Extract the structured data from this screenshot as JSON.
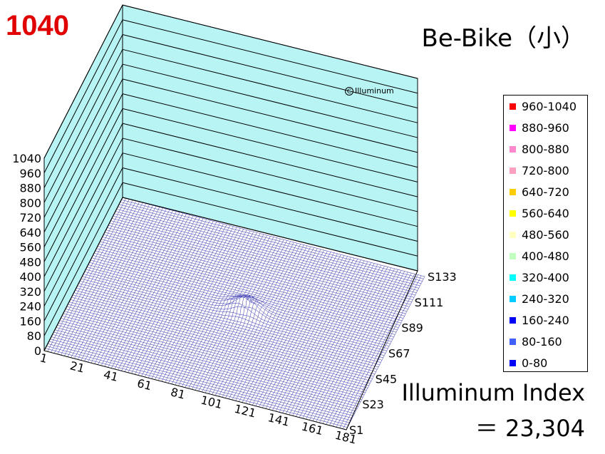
{
  "header": {
    "max_value_label": "1040",
    "title": "Be-Bike（小）"
  },
  "watermark": {
    "symbol": "C",
    "text": "Illuminum"
  },
  "footer": {
    "index_label": "Illuminum Index",
    "index_value": "＝ 23,304"
  },
  "colors": {
    "wall": "#b8f4f4",
    "surface_line": "#3030b0"
  },
  "legend": [
    {
      "label": "960-1040",
      "color": "#ff0000"
    },
    {
      "label": "880-960",
      "color": "#ff00ff"
    },
    {
      "label": "800-880",
      "color": "#ff88cc"
    },
    {
      "label": "720-800",
      "color": "#ffa0c0"
    },
    {
      "label": "640-720",
      "color": "#ffcc00"
    },
    {
      "label": "560-640",
      "color": "#ffff00"
    },
    {
      "label": "480-560",
      "color": "#ffffc0"
    },
    {
      "label": "400-480",
      "color": "#c0ffc0"
    },
    {
      "label": "320-400",
      "color": "#00ffff"
    },
    {
      "label": "240-320",
      "color": "#00ccff"
    },
    {
      "label": "160-240",
      "color": "#0000ff"
    },
    {
      "label": "80-160",
      "color": "#4060ff"
    },
    {
      "label": "0-80",
      "color": "#0000ff"
    }
  ],
  "chart_data": {
    "type": "surface",
    "title": "Be-Bike（小）",
    "z_ticks": [
      "0",
      "80",
      "160",
      "240",
      "320",
      "400",
      "480",
      "560",
      "640",
      "720",
      "800",
      "880",
      "960",
      "1040"
    ],
    "zlim": [
      0,
      1040
    ],
    "x_ticks": [
      "1",
      "21",
      "41",
      "61",
      "81",
      "101",
      "121",
      "141",
      "161",
      "181"
    ],
    "y_ticks": [
      "S1",
      "S23",
      "S45",
      "S67",
      "S89",
      "S111",
      "S133"
    ],
    "max_value": 1040,
    "peak_description_values": {
      "peak_x": 96,
      "peak_y_series": 72,
      "peak_z": 80
    }
  }
}
